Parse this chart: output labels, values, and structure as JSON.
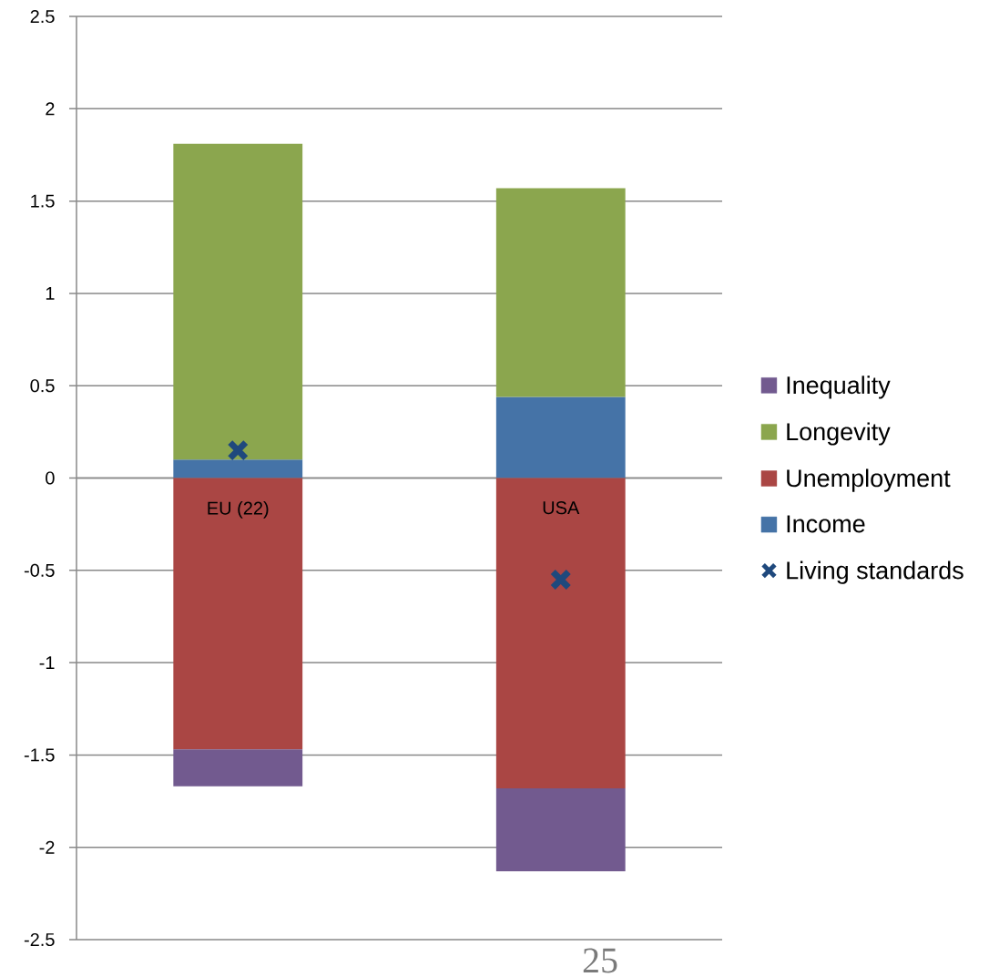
{
  "chart_data": {
    "type": "bar",
    "stacked": true,
    "categories": [
      "EU (22)",
      "USA"
    ],
    "series": [
      {
        "name": "Income",
        "color": "#4573a7",
        "values": [
          0.1,
          0.44
        ]
      },
      {
        "name": "Unemployment",
        "color": "#aa4644",
        "values": [
          -1.47,
          -1.68
        ]
      },
      {
        "name": "Longevity",
        "color": "#8ba64e",
        "values": [
          1.71,
          1.13
        ]
      },
      {
        "name": "Inequality",
        "color": "#725a8f",
        "values": [
          -0.2,
          -0.45
        ]
      },
      {
        "name": "Living standards",
        "type": "scatter",
        "marker": "cross",
        "color": "#1f497d",
        "x": [
          "EU (22)",
          "USA"
        ],
        "values": [
          0.15,
          -0.55
        ]
      }
    ],
    "ylim": [
      -2.5,
      2.5
    ],
    "yticks": [
      -2.5,
      -2,
      -1.5,
      -1,
      -0.5,
      0,
      0.5,
      1,
      1.5,
      2,
      2.5
    ],
    "grid": "y",
    "legend": "right",
    "annotations": [
      "25"
    ]
  }
}
